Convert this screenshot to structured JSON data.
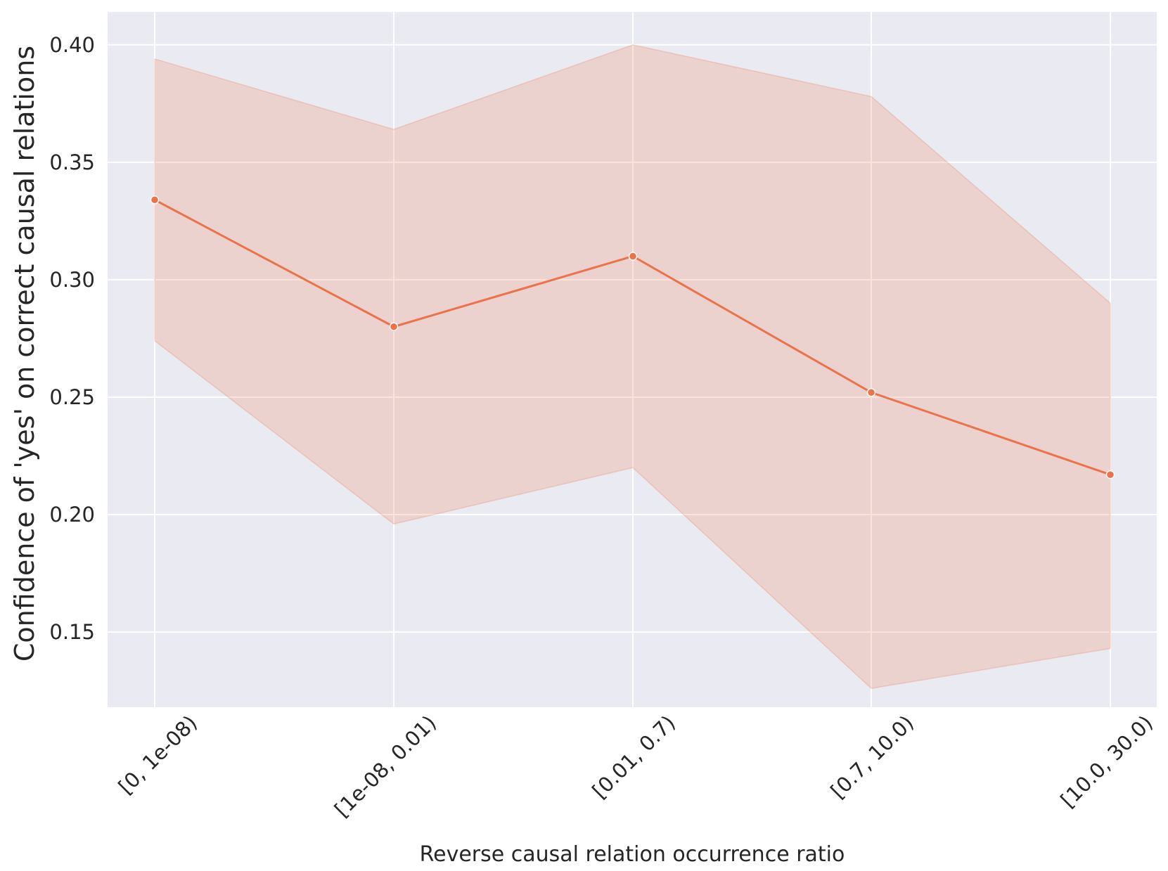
{
  "chart_data": {
    "type": "line",
    "title": "",
    "xlabel": "Reverse causal relation occurrence ratio",
    "ylabel": "Confidence of 'yes' on correct causal relations",
    "categories": [
      "[0, 1e-08)",
      "[1e-08, 0.01)",
      "[0.01, 0.7)",
      "[0.7, 10.0)",
      "[10.0, 30.0)"
    ],
    "series": [
      {
        "values": [
          0.334,
          0.28,
          0.31,
          0.252,
          0.217
        ],
        "ci_upper": [
          0.394,
          0.364,
          0.4,
          0.378,
          0.29
        ],
        "ci_lower": [
          0.274,
          0.196,
          0.22,
          0.126,
          0.143
        ]
      }
    ],
    "ylim": [
      0.118,
      0.414
    ],
    "yticks": [
      0.15,
      0.2,
      0.25,
      0.3,
      0.35,
      0.4
    ],
    "ytick_labels": [
      "0.15",
      "0.20",
      "0.25",
      "0.30",
      "0.35",
      "0.40"
    ],
    "grid": true,
    "colors": {
      "line": "#ee7148",
      "band": "#ee7148",
      "plot_background": "#eaeaf2",
      "grid": "#ffffff",
      "text": "#262626"
    }
  }
}
